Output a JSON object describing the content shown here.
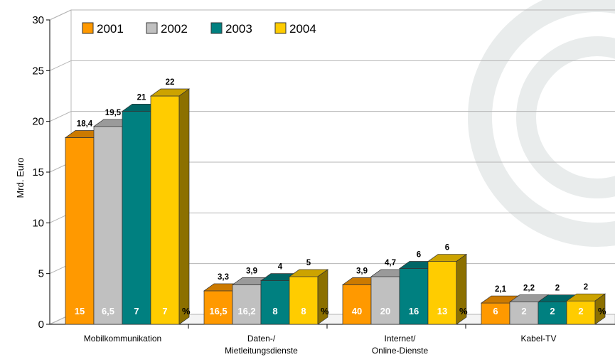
{
  "chart_data": {
    "type": "bar",
    "ylabel": "Mrd. Euro",
    "ylim": [
      0,
      30
    ],
    "yticks": [
      "0",
      "5",
      "10",
      "15",
      "20",
      "25",
      "30"
    ],
    "legend_position": "top-left",
    "categories": [
      [
        "Mobilkommunikation"
      ],
      [
        "Daten-/",
        "Mietleitungsdienste"
      ],
      [
        "Internet/",
        "Online-Dienste"
      ],
      [
        "Kabel-TV"
      ]
    ],
    "series": [
      {
        "name": "2001",
        "color": "#FF9900",
        "values": [
          18.4,
          3.3,
          3.9,
          2.1
        ],
        "labels": [
          "18,4",
          "3,3",
          "3,9",
          "2,1"
        ],
        "pct": [
          "15",
          "16,5",
          "40",
          "6"
        ]
      },
      {
        "name": "2002",
        "color": "#C0C0C0",
        "values": [
          19.5,
          3.9,
          4.7,
          2.2
        ],
        "labels": [
          "19,5",
          "3,9",
          "4,7",
          "2,2"
        ],
        "pct": [
          "6,5",
          "16,2",
          "20",
          "2"
        ]
      },
      {
        "name": "2003",
        "color": "#008080",
        "values": [
          21,
          4.3,
          5.5,
          2.2
        ],
        "labels": [
          "21",
          "4",
          "6",
          "2"
        ],
        "pct": [
          "7",
          "8",
          "16",
          "2"
        ]
      },
      {
        "name": "2004",
        "color": "#FFCC00",
        "values": [
          22.5,
          4.7,
          6.2,
          2.3
        ],
        "labels": [
          "22",
          "5",
          "6",
          "2"
        ],
        "pct": [
          "7",
          "8",
          "13",
          "2"
        ]
      }
    ],
    "percent_sign": "%",
    "grid": true
  }
}
